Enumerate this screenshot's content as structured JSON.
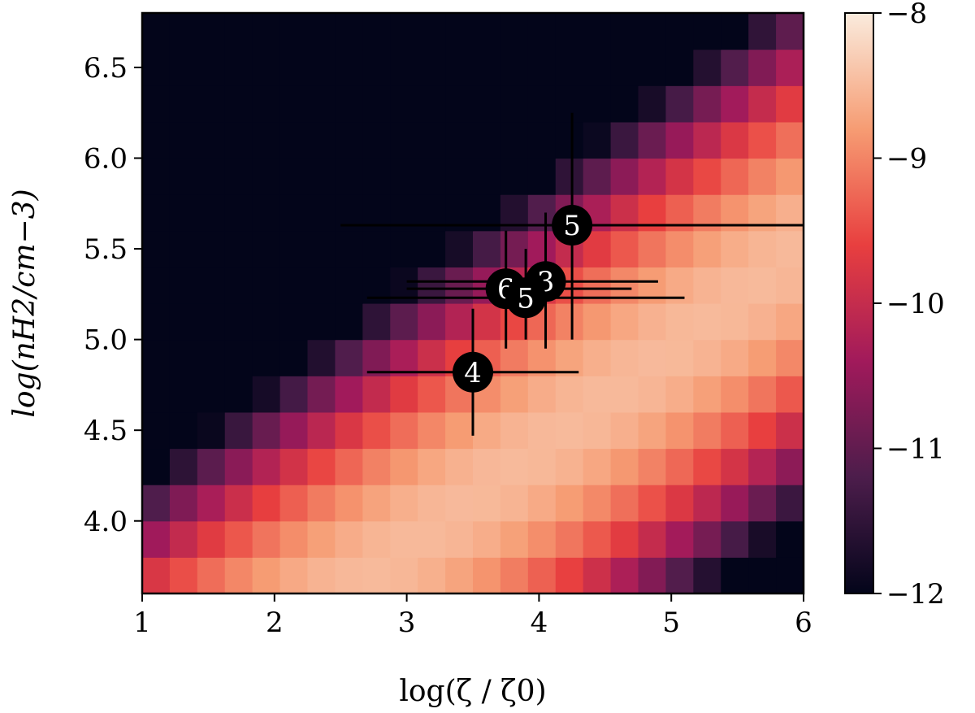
{
  "chart_data": {
    "type": "heatmap",
    "xlabel": "log(ζ / ζ0)",
    "ylabel": "log(nH2/cm−3)",
    "xlim": [
      1,
      6
    ],
    "ylim": [
      3.6,
      6.8
    ],
    "x_ticks": [
      1,
      2,
      3,
      4,
      5,
      6
    ],
    "x_tick_labels": [
      "1",
      "2",
      "3",
      "4",
      "5",
      "6"
    ],
    "y_ticks": [
      4.0,
      4.5,
      5.0,
      5.5,
      6.0,
      6.5
    ],
    "y_tick_labels": [
      "4.0",
      "4.5",
      "5.0",
      "5.5",
      "6.0",
      "6.5"
    ],
    "colorbar": {
      "min": -12,
      "max": -8,
      "ticks": [
        -12,
        -11,
        -10,
        -9,
        -8
      ],
      "tick_labels": [
        "−12",
        "−11",
        "−10",
        "−9",
        "−8"
      ],
      "colormap": [
        "#03051a",
        "#4c1d4b",
        "#a11a5b",
        "#e83f3f",
        "#f69c73",
        "#faebdd"
      ]
    },
    "grid": {
      "nx": 24,
      "ny": 16,
      "ridge_slope": 0.55,
      "ridge_intercept": 2.2,
      "peak_value": -8.5,
      "cutoff_value": -12,
      "falloff_scale": 0.75
    },
    "points": [
      {
        "label": "5",
        "x": 4.25,
        "y": 5.63,
        "xerr": [
          2.5,
          6.0
        ],
        "yerr": [
          5.0,
          6.25
        ]
      },
      {
        "label": "3",
        "x": 4.05,
        "y": 5.32,
        "xerr": [
          3.0,
          4.9
        ],
        "yerr": [
          4.95,
          5.7
        ]
      },
      {
        "label": "6",
        "x": 3.75,
        "y": 5.28,
        "xerr": [
          3.0,
          4.7
        ],
        "yerr": [
          4.95,
          5.6
        ]
      },
      {
        "label": "5",
        "x": 3.9,
        "y": 5.23,
        "xerr": [
          2.7,
          5.1
        ],
        "yerr": [
          5.0,
          5.5
        ]
      },
      {
        "label": "4",
        "x": 3.5,
        "y": 4.82,
        "xerr": [
          2.7,
          4.3
        ],
        "yerr": [
          4.47,
          5.17
        ]
      }
    ]
  }
}
